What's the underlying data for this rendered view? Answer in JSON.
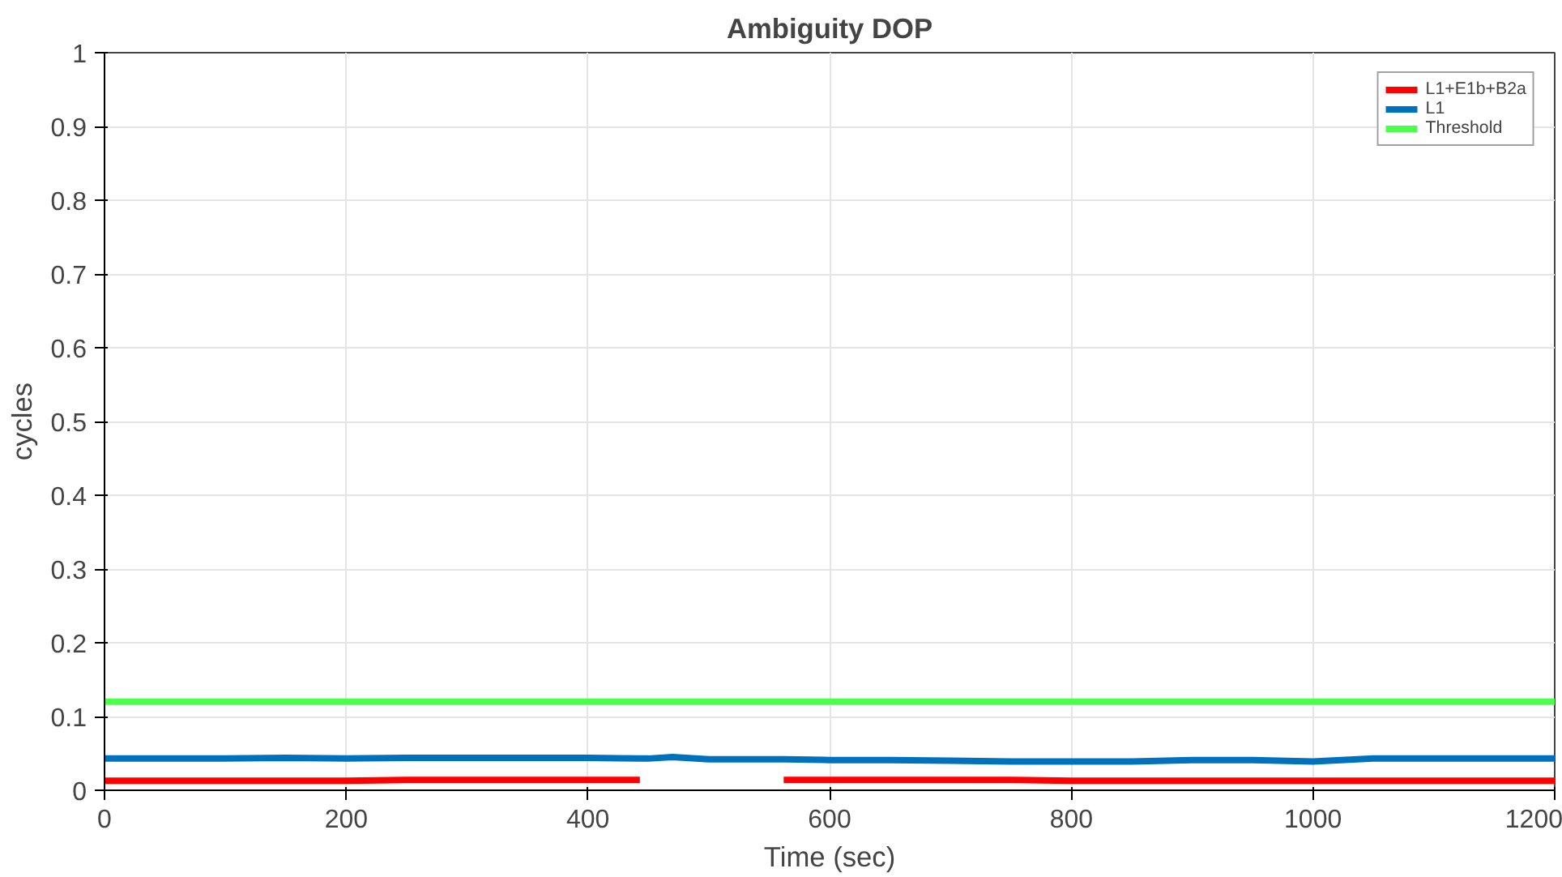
{
  "chart_data": {
    "type": "line",
    "title": "Ambiguity DOP",
    "xlabel": "Time (sec)",
    "ylabel": "cycles",
    "x": [
      0,
      50,
      100,
      150,
      200,
      250,
      300,
      350,
      400,
      443,
      450,
      470,
      500,
      550,
      562,
      600,
      650,
      700,
      750,
      800,
      850,
      900,
      950,
      1000,
      1050,
      1100,
      1150,
      1200
    ],
    "series": [
      {
        "name": "L1+E1b+B2a",
        "color": "#ff0000",
        "values": [
          0.013,
          0.013,
          0.013,
          0.013,
          0.013,
          0.014,
          0.014,
          0.014,
          0.014,
          0.014,
          null,
          null,
          null,
          null,
          0.014,
          0.014,
          0.014,
          0.014,
          0.014,
          0.013,
          0.013,
          0.013,
          0.013,
          0.013,
          0.013,
          0.013,
          0.013,
          0.013
        ]
      },
      {
        "name": "L1",
        "color": "#0072bd",
        "values": [
          0.043,
          0.043,
          0.043,
          0.044,
          0.043,
          0.044,
          0.044,
          0.044,
          0.044,
          0.043,
          0.043,
          0.045,
          0.042,
          0.042,
          0.042,
          0.041,
          0.041,
          0.04,
          0.039,
          0.039,
          0.039,
          0.041,
          0.041,
          0.039,
          0.043,
          0.043,
          0.043,
          0.043
        ]
      },
      {
        "name": "Threshold",
        "color": "#4dff4d",
        "x": [
          0,
          1200
        ],
        "values": [
          0.12,
          0.12
        ]
      }
    ],
    "xlim": [
      0,
      1200
    ],
    "xticks": [
      0,
      200,
      400,
      600,
      800,
      1000,
      1200
    ],
    "ylim": [
      0,
      1
    ],
    "yticks": [
      0,
      0.1,
      0.2,
      0.3,
      0.4,
      0.5,
      0.6,
      0.7,
      0.8,
      0.9,
      1
    ],
    "grid": true,
    "legend": "top right",
    "line_style": "solid",
    "marker": "none"
  }
}
